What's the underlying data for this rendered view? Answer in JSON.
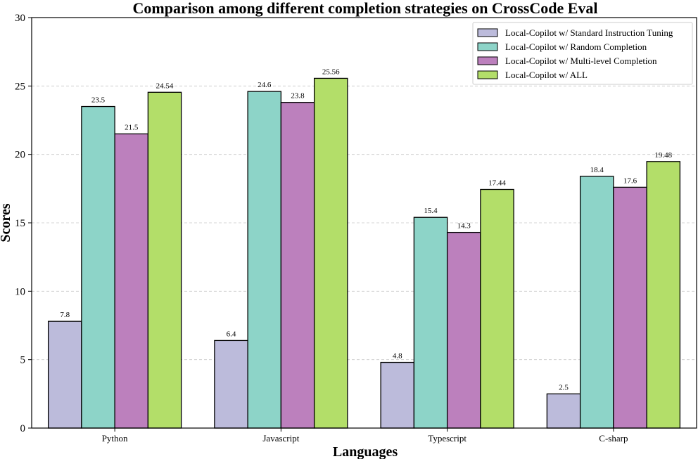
{
  "chart_data": {
    "type": "bar",
    "title": "Comparison among different completion strategies on CrossCode Eval",
    "xlabel": "Languages",
    "ylabel": "Scores",
    "ylim": [
      0,
      30
    ],
    "yticks": [
      0,
      5,
      10,
      15,
      20,
      25,
      30
    ],
    "grid": "horizontal dashed",
    "legend_position": "top-right",
    "categories": [
      "Python",
      "Javascript",
      "Typescript",
      "C-sharp"
    ],
    "series": [
      {
        "name": "Local-Copilot w/ Standard Instruction Tuning",
        "color": "#bcbbdb",
        "values": [
          7.8,
          6.4,
          4.8,
          2.5
        ],
        "labels": [
          "7.8",
          "6.4",
          "4.8",
          "2.5"
        ]
      },
      {
        "name": "Local-Copilot w/ Random Completion",
        "color": "#8dd4c8",
        "values": [
          23.5,
          24.6,
          15.4,
          18.4
        ],
        "labels": [
          "23.5",
          "24.6",
          "15.4",
          "18.4"
        ]
      },
      {
        "name": "Local-Copilot w/ Multi-level Completion",
        "color": "#bc80bd",
        "values": [
          21.5,
          23.8,
          14.3,
          17.6
        ],
        "labels": [
          "21.5",
          "23.8",
          "14.3",
          "17.6"
        ]
      },
      {
        "name": "Local-Copilot w/ ALL",
        "color": "#b3de69",
        "values": [
          24.54,
          25.56,
          17.44,
          19.48
        ],
        "labels": [
          "24.54",
          "25.56",
          "17.44",
          "19.48"
        ]
      }
    ]
  }
}
